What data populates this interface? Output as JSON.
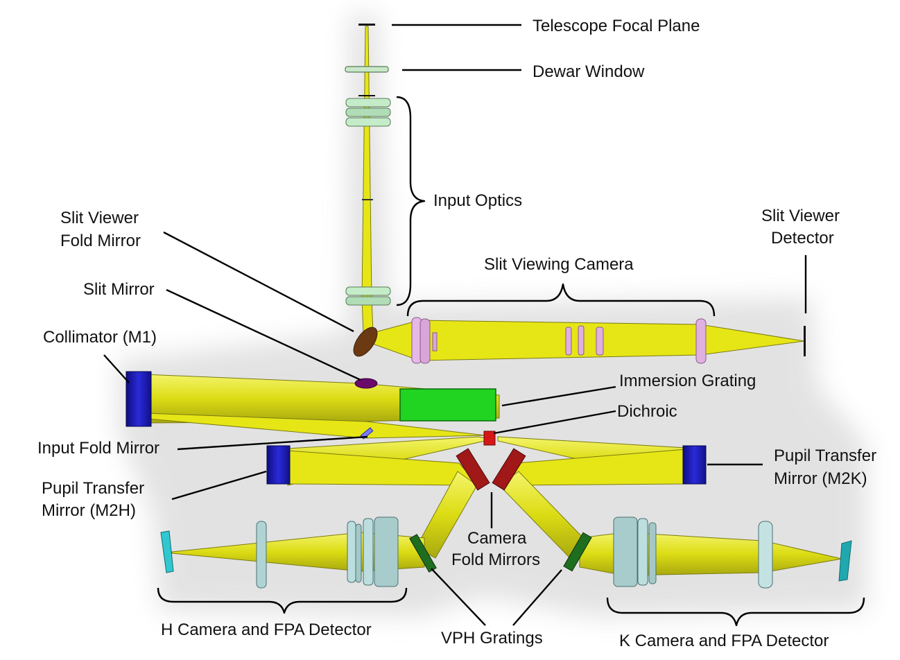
{
  "labels": {
    "telescope_focal_plane": "Telescope Focal Plane",
    "dewar_window": "Dewar Window",
    "input_optics": "Input Optics",
    "slit_viewer_fold_mirror_line1": "Slit Viewer",
    "slit_viewer_fold_mirror_line2": "Fold Mirror",
    "slit_mirror": "Slit Mirror",
    "collimator": "Collimator (M1)",
    "slit_viewer_detector_line1": "Slit Viewer",
    "slit_viewer_detector_line2": "Detector",
    "slit_viewing_camera": "Slit Viewing Camera",
    "immersion_grating": "Immersion Grating",
    "dichroic": "Dichroic",
    "input_fold_mirror": "Input Fold Mirror",
    "pupil_transfer_m2h_line1": "Pupil Transfer",
    "pupil_transfer_m2h_line2": "Mirror (M2H)",
    "pupil_transfer_m2k_line1": "Pupil Transfer",
    "pupil_transfer_m2k_line2": "Mirror (M2K)",
    "camera_fold_mirrors_line1": "Camera",
    "camera_fold_mirrors_line2": "Fold Mirrors",
    "h_camera": "H Camera and FPA Detector",
    "vph_gratings": "VPH Gratings",
    "k_camera": "K Camera and FPA Detector"
  },
  "colors": {
    "beam": "#e6e617",
    "collimator": "#1c1ca8",
    "pupil_mirrors": "#1f1fd0",
    "immersion_grating": "#22d422",
    "dichroic": "#d41616",
    "camera_fold_mirrors": "#a01818",
    "vph_gratings": "#1f6e1f",
    "slit_mirror": "#6a0a6a",
    "fold_mirror": "#6b3a12",
    "input_optics_lens": "#b8e0c0",
    "slit_camera_lens": "#e0b0e0",
    "camera_lens": "#b0d4d4",
    "detector": "#30c8d0"
  }
}
